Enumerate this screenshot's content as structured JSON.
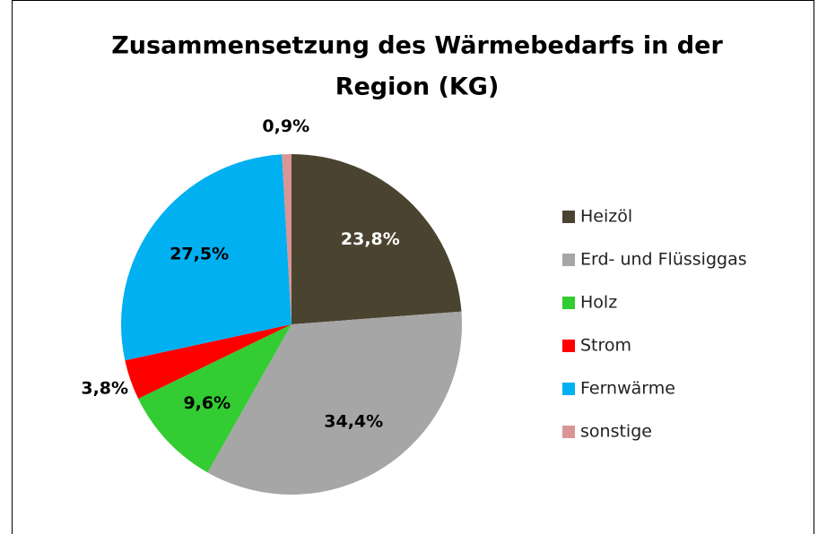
{
  "chart_data": {
    "type": "pie",
    "title": [
      "Zusammensetzung des Wärmebedarfs in der",
      "Region (KG)"
    ],
    "categories": [
      "Heizöl",
      "Erd- und Flüssiggas",
      "Holz",
      "Strom",
      "Fernwärme",
      "sonstige"
    ],
    "values": [
      23.8,
      34.4,
      9.6,
      3.8,
      27.5,
      0.9
    ],
    "value_labels": [
      "23,8%",
      "34,4%",
      "9,6%",
      "3,8%",
      "27,5%",
      "0,9%"
    ],
    "colors": [
      "#4a4330",
      "#a6a6a6",
      "#33cc33",
      "#ff0000",
      "#00b0f0",
      "#d99694"
    ],
    "legend": "right"
  }
}
